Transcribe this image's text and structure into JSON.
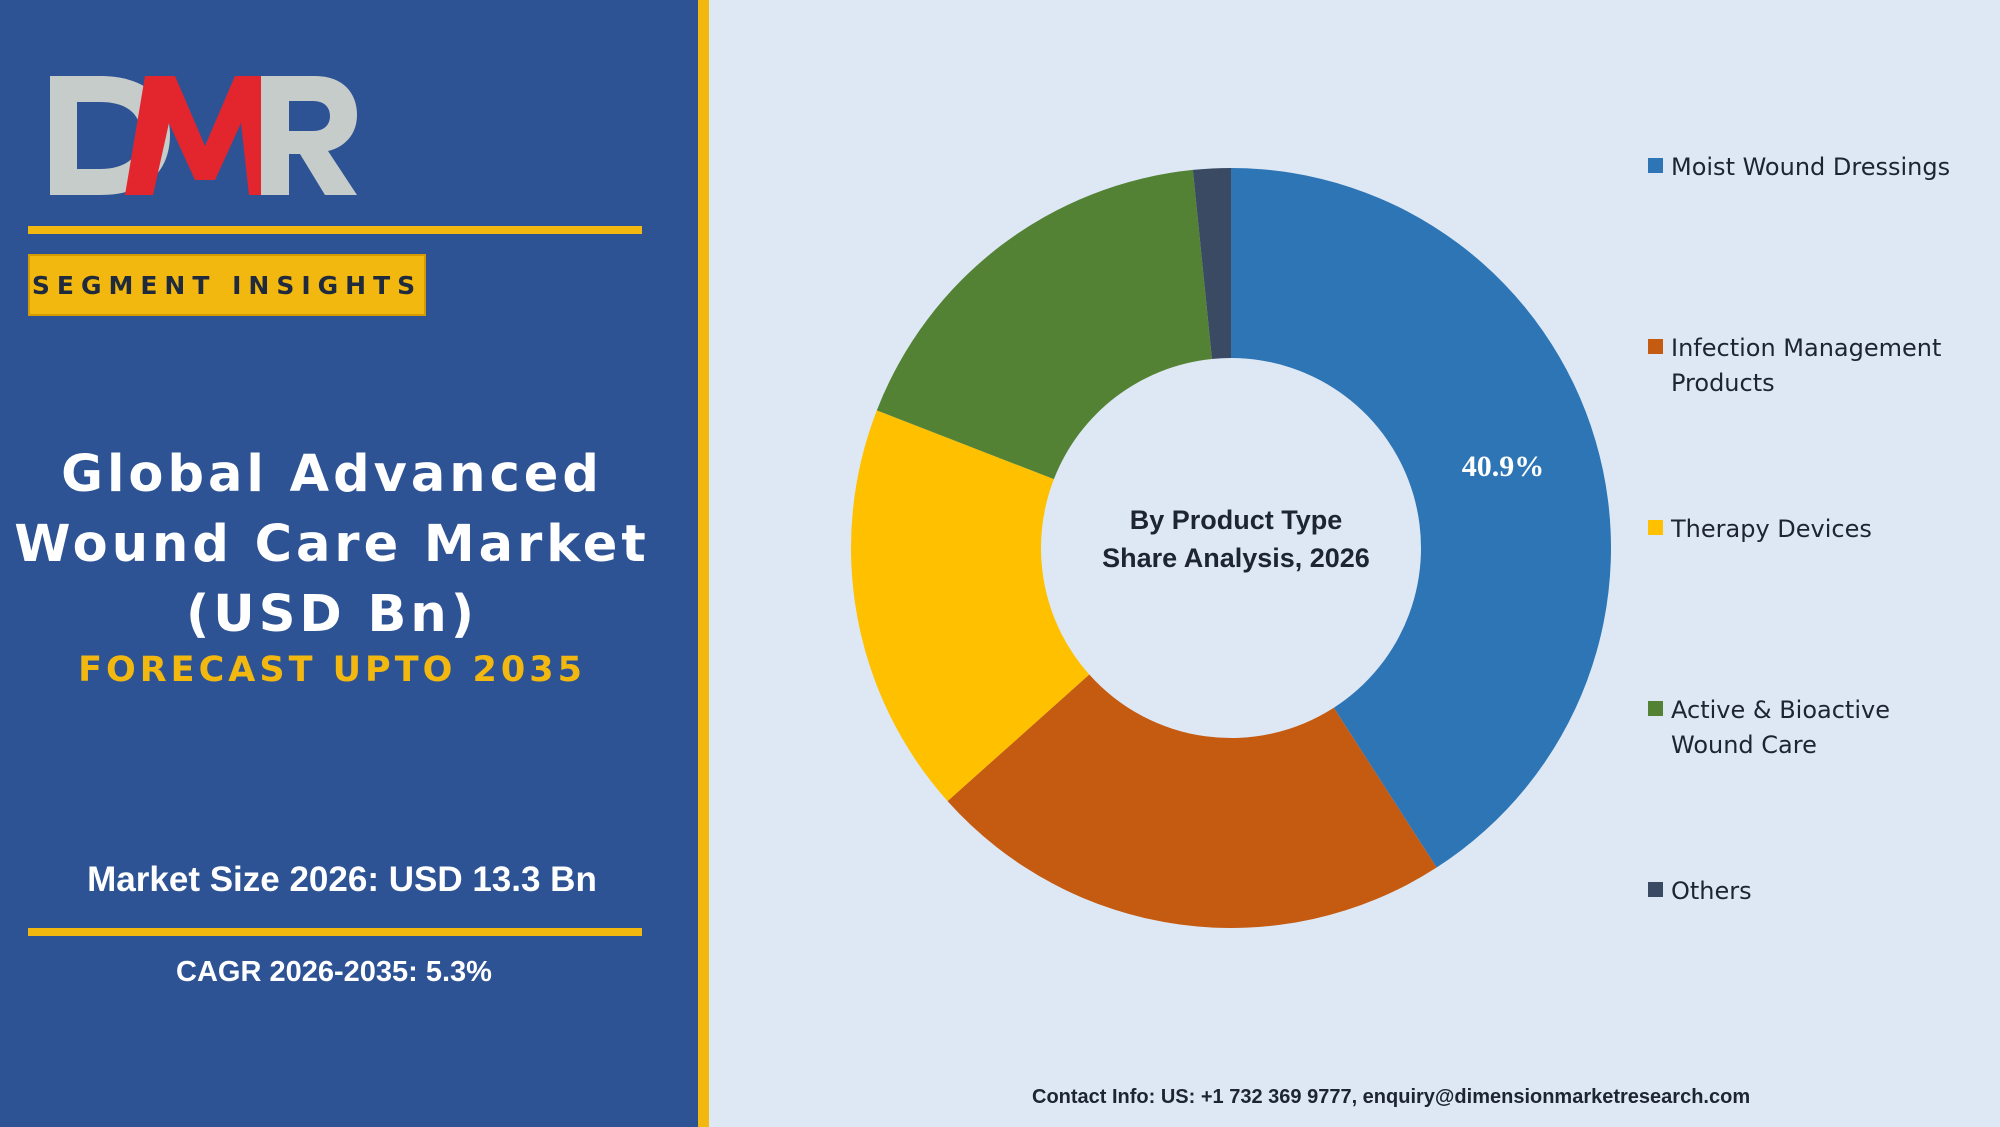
{
  "brand": {
    "logo_text": "DMR",
    "colors": {
      "red": "#e3262d",
      "grey": "#c6ccc9"
    }
  },
  "left_panel": {
    "badge": "SEGMENT INSIGHTS",
    "title_lines": [
      "Global Advanced",
      "Wound Care Market",
      "(USD Bn)"
    ],
    "forecast": "FORECAST UPTO 2035",
    "market_size": "Market Size 2026: USD 13.3 Bn",
    "cagr": "CAGR 2026-2035: 5.3%"
  },
  "chart_data": {
    "type": "pie",
    "donut": true,
    "center_label_lines": [
      "By Product Type",
      "Share Analysis, 2026"
    ],
    "legend_position": "right",
    "slices": [
      {
        "name": "Moist Wound Dressings",
        "value": 40.9,
        "color": "#2e75b6",
        "label": "40.9%"
      },
      {
        "name": "Infection Management Products",
        "value": 22.5,
        "color": "#c55a11"
      },
      {
        "name": "Therapy Devices",
        "value": 17.5,
        "color": "#ffc000"
      },
      {
        "name": "Active & Bioactive Wound Care",
        "value": 17.5,
        "color": "#548235"
      },
      {
        "name": "Others",
        "value": 1.6,
        "color": "#3b4a63"
      }
    ]
  },
  "legend": [
    {
      "lines": [
        "Moist Wound Dressings"
      ]
    },
    {
      "lines": [
        "Infection Management",
        "Products"
      ]
    },
    {
      "lines": [
        "Therapy Devices"
      ]
    },
    {
      "lines": [
        "Active & Bioactive",
        "Wound Care"
      ]
    },
    {
      "lines": [
        "Others"
      ]
    }
  ],
  "footer": {
    "contact": "Contact Info: US: +1 732 369 9777, enquiry@dimensionmarketresearch.com"
  }
}
